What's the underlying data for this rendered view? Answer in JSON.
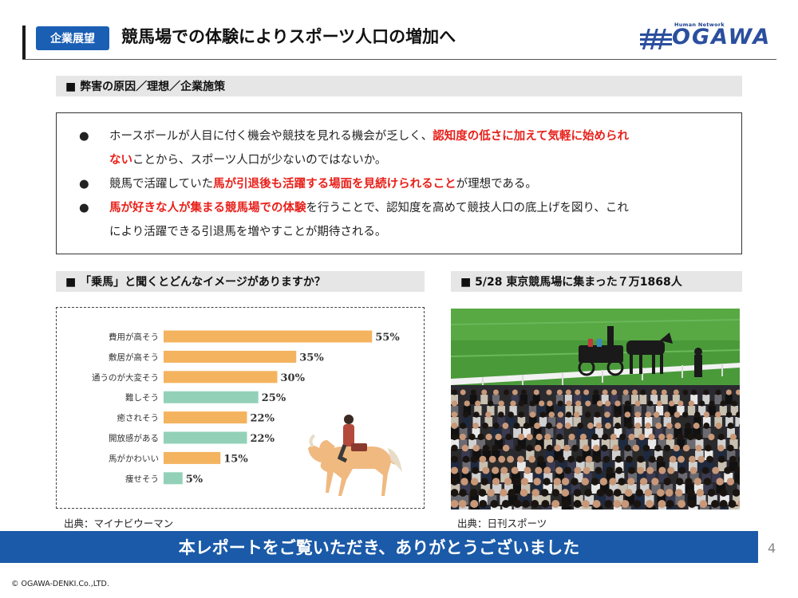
{
  "header": {
    "badge": "企業展望",
    "title": "競馬場での体験によりスポーツ人口の増加へ",
    "logo_small": "Human Network",
    "logo_text": "OGAWA"
  },
  "section1": {
    "label": "■ 弊害の原因／理想／企業施策",
    "bullets": [
      {
        "dot": "●",
        "line1_normal": "ホースボールが人目に付く機会や競技を見れる機会が乏しく、",
        "line1_red": "認知度の低さに加えて気軽に始められ",
        "line2_red": "ない",
        "line2_normal": "ことから、スポーツ人口が少ないのではないか。"
      },
      {
        "dot": "●",
        "pre": "競馬で活躍していた",
        "red": "馬が引退後も活躍する場面を見続けられること",
        "post": "が理想である。"
      },
      {
        "dot": "●",
        "red": "馬が好きな人が集まる競馬場での体験",
        "line1_normal": "を行うことで、認知度を高めて競技人口の底上げを図り、これ",
        "line2_normal": "により活躍できる引退馬を増やすことが期待される。"
      }
    ]
  },
  "section2": {
    "label": "■ 「乗馬」と聞くとどんなイメージがありますか？",
    "source": "出典：マイナビウーマン"
  },
  "section3": {
    "label": "■ 5/28 東京競馬場に集まった７万1868人",
    "source": "出典：日刊スポーツ"
  },
  "chart_data": {
    "type": "bar",
    "orientation": "horizontal",
    "categories": [
      "費用が高そう",
      "敷居が高そう",
      "通うのが大変そう",
      "難しそう",
      "癒されそう",
      "開放感がある",
      "馬がかわいい",
      "痩せそう"
    ],
    "values": [
      55,
      35,
      30,
      25,
      22,
      22,
      15,
      5
    ],
    "value_labels": [
      "55%",
      "35%",
      "30%",
      "25%",
      "22%",
      "22%",
      "15%",
      "5%"
    ],
    "colors": [
      "#f4b35f",
      "#f4b35f",
      "#f4b35f",
      "#92d1b8",
      "#f4b35f",
      "#92d1b8",
      "#f4b35f",
      "#92d1b8"
    ]
  },
  "footer": {
    "banner": "本レポートをご覧いただき、ありがとうございました",
    "page": "4",
    "copyright": "© OGAWA-DENKI.Co.,LTD."
  }
}
